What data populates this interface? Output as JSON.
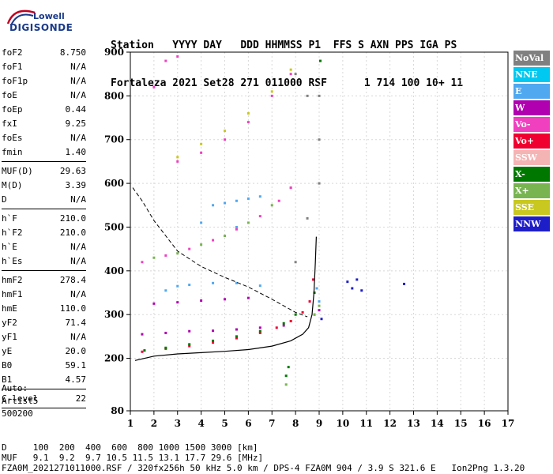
{
  "logo": {
    "line1": "Lowell",
    "line2": "DIGISONDE"
  },
  "header": {
    "line1": "Station   YYYY DAY   DDD HHMMSS P1  FFS S AXN PPS IGA PS",
    "line2": "Fortaleza 2021 Set28 271 011000 RSF      1 714 100 10+ 11"
  },
  "params": [
    [
      {
        "label": "foF2",
        "value": "8.750"
      },
      {
        "label": "foF1",
        "value": "N/A"
      },
      {
        "label": "foF1p",
        "value": "N/A"
      },
      {
        "label": "foE",
        "value": "N/A"
      },
      {
        "label": "foEp",
        "value": "0.44"
      },
      {
        "label": "fxI",
        "value": "9.25"
      },
      {
        "label": "foEs",
        "value": "N/A"
      },
      {
        "label": "fmin",
        "value": "1.40"
      }
    ],
    [
      {
        "label": "MUF(D)",
        "value": "29.63"
      },
      {
        "label": "M(D)",
        "value": "3.39"
      },
      {
        "label": "D",
        "value": "N/A"
      }
    ],
    [
      {
        "label": "h`F",
        "value": "210.0"
      },
      {
        "label": "h`F2",
        "value": "210.0"
      },
      {
        "label": "h`E",
        "value": "N/A"
      },
      {
        "label": "h`Es",
        "value": "N/A"
      }
    ],
    [
      {
        "label": "hmF2",
        "value": "278.4"
      },
      {
        "label": "hmF1",
        "value": "N/A"
      },
      {
        "label": "hmE",
        "value": "110.0"
      },
      {
        "label": "yF2",
        "value": "71.4"
      },
      {
        "label": "yF1",
        "value": "N/A"
      },
      {
        "label": "yE",
        "value": "20.0"
      },
      {
        "label": "B0",
        "value": "59.1"
      },
      {
        "label": "B1",
        "value": "4.57"
      }
    ],
    [
      {
        "label": "C-level",
        "value": "22"
      }
    ]
  ],
  "autoscaling": {
    "line1": "Auto:",
    "line2": "Artist5",
    "line3": "500200"
  },
  "legend": [
    {
      "label": "NoVal",
      "color": "#808080"
    },
    {
      "label": "NNE",
      "color": "#00c8f0"
    },
    {
      "label": "E",
      "color": "#50a8f0"
    },
    {
      "label": "W",
      "color": "#b000b0"
    },
    {
      "label": "Vo-",
      "color": "#f040c0"
    },
    {
      "label": "Vo+",
      "color": "#f00030"
    },
    {
      "label": "SSW",
      "color": "#f4b4b4"
    },
    {
      "label": "X-",
      "color": "#007800"
    },
    {
      "label": "X+",
      "color": "#78b450"
    },
    {
      "label": "SSE",
      "color": "#c8c820"
    },
    {
      "label": "NNW",
      "color": "#1e1ec8"
    }
  ],
  "footer": {
    "line1": "D     100  200  400  600  800 1000 1500 3000 [km]",
    "line2": "MUF   9.1  9.2  9.7 10.5 11.5 13.1 17.7 29.6 [MHz]",
    "line3": "FZA0M_2021271011000.RSF / 320fx256h 50 kHz 5.0 km / DPS-4 FZA0M 904 / 3.9 S 321.6 E   Ion2Png 1.3.20"
  },
  "chart_data": {
    "type": "scatter",
    "xlim": [
      1,
      17
    ],
    "ylim": [
      80,
      900
    ],
    "xticks": [
      1,
      2,
      3,
      4,
      5,
      6,
      7,
      8,
      9,
      10,
      11,
      12,
      13,
      14,
      15,
      16,
      17
    ],
    "yticks": [
      80,
      200,
      300,
      400,
      500,
      600,
      700,
      800,
      900
    ],
    "grid": true,
    "series": [
      {
        "name": "Vo+",
        "color": "#f00030",
        "points": [
          [
            1.5,
            215
          ],
          [
            2.5,
            222
          ],
          [
            3.5,
            228
          ],
          [
            4.5,
            236
          ],
          [
            5.5,
            246
          ],
          [
            6.5,
            258
          ],
          [
            7.2,
            270
          ],
          [
            7.8,
            285
          ],
          [
            8.3,
            305
          ],
          [
            8.6,
            330
          ],
          [
            8.75,
            380
          ]
        ]
      },
      {
        "name": "W",
        "color": "#b000b0",
        "points": [
          [
            1.5,
            255
          ],
          [
            2.5,
            258
          ],
          [
            3.5,
            262
          ],
          [
            4.5,
            263
          ],
          [
            5.5,
            266
          ],
          [
            6.5,
            270
          ],
          [
            7.5,
            275
          ],
          [
            2,
            325
          ],
          [
            3,
            328
          ],
          [
            4,
            332
          ],
          [
            5,
            335
          ],
          [
            6,
            338
          ],
          [
            8.8,
            300
          ],
          [
            9,
            310
          ]
        ]
      },
      {
        "name": "E",
        "color": "#50a8f0",
        "points": [
          [
            2.5,
            355
          ],
          [
            3,
            365
          ],
          [
            3.5,
            368
          ],
          [
            4.5,
            372
          ],
          [
            5.5,
            372
          ],
          [
            6.5,
            366
          ],
          [
            4.5,
            550
          ],
          [
            5,
            555
          ],
          [
            5.5,
            560
          ],
          [
            6,
            565
          ],
          [
            6.5,
            570
          ],
          [
            8.9,
            360
          ],
          [
            9,
            330
          ],
          [
            5.5,
            500
          ],
          [
            4,
            510
          ]
        ]
      },
      {
        "name": "NNW",
        "color": "#1e1ec8",
        "points": [
          [
            10.2,
            375
          ],
          [
            10.4,
            360
          ],
          [
            10.6,
            380
          ],
          [
            10.8,
            355
          ],
          [
            12.6,
            370
          ],
          [
            9.1,
            290
          ]
        ]
      },
      {
        "name": "X-",
        "color": "#007800",
        "points": [
          [
            1.6,
            218
          ],
          [
            2.5,
            224
          ],
          [
            3.5,
            232
          ],
          [
            4.5,
            240
          ],
          [
            5.5,
            250
          ],
          [
            6.5,
            262
          ],
          [
            7.5,
            280
          ],
          [
            8.8,
            350
          ],
          [
            9.05,
            880
          ],
          [
            7.6,
            160
          ],
          [
            7.7,
            180
          ],
          [
            8,
            300
          ]
        ]
      },
      {
        "name": "X+",
        "color": "#78b450",
        "points": [
          [
            2,
            430
          ],
          [
            3,
            440
          ],
          [
            4,
            460
          ],
          [
            5,
            480
          ],
          [
            6,
            510
          ],
          [
            7,
            550
          ],
          [
            7.8,
            590
          ],
          [
            8.8,
            300
          ],
          [
            9,
            320
          ],
          [
            7.6,
            140
          ]
        ]
      },
      {
        "name": "Vo-",
        "color": "#f040c0",
        "points": [
          [
            1.5,
            420
          ],
          [
            2.5,
            435
          ],
          [
            3.5,
            450
          ],
          [
            4.5,
            470
          ],
          [
            5.5,
            495
          ],
          [
            6.5,
            525
          ],
          [
            7.3,
            560
          ],
          [
            7.8,
            590
          ],
          [
            3,
            650
          ],
          [
            4,
            670
          ],
          [
            5,
            700
          ],
          [
            6,
            740
          ],
          [
            7,
            800
          ],
          [
            7.8,
            850
          ],
          [
            2.5,
            880
          ],
          [
            3,
            890
          ],
          [
            2,
            820
          ]
        ]
      },
      {
        "name": "SSE",
        "color": "#c8c820",
        "points": [
          [
            3,
            660
          ],
          [
            4,
            690
          ],
          [
            5,
            720
          ],
          [
            6,
            760
          ],
          [
            7,
            810
          ],
          [
            7.8,
            860
          ]
        ]
      },
      {
        "name": "NoVal",
        "color": "#808080",
        "points": [
          [
            9,
            600
          ],
          [
            9,
            700
          ],
          [
            9,
            800
          ],
          [
            8.5,
            800
          ],
          [
            8,
            850
          ],
          [
            8.5,
            520
          ],
          [
            8,
            420
          ]
        ]
      }
    ],
    "profile_solid": [
      [
        1.2,
        195
      ],
      [
        2,
        205
      ],
      [
        3,
        210
      ],
      [
        4,
        213
      ],
      [
        5,
        216
      ],
      [
        6,
        220
      ],
      [
        7,
        228
      ],
      [
        7.8,
        240
      ],
      [
        8.3,
        255
      ],
      [
        8.55,
        270
      ],
      [
        8.7,
        300
      ],
      [
        8.78,
        350
      ],
      [
        8.84,
        420
      ],
      [
        8.88,
        478
      ]
    ],
    "profile_dashed": [
      [
        1.1,
        590
      ],
      [
        1.5,
        560
      ],
      [
        2,
        515
      ],
      [
        2.5,
        480
      ],
      [
        3,
        445
      ],
      [
        4,
        410
      ],
      [
        5,
        385
      ],
      [
        6,
        363
      ],
      [
        7,
        335
      ],
      [
        8,
        305
      ],
      [
        8.5,
        295
      ]
    ]
  }
}
